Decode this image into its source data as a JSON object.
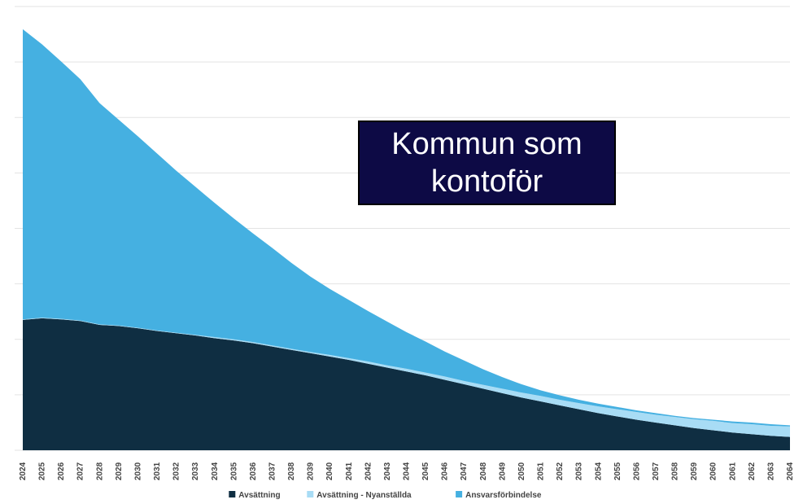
{
  "chart_data": {
    "type": "stacked_area",
    "annotation": "Kommun som kontoför",
    "x": [
      2024,
      2025,
      2026,
      2027,
      2028,
      2029,
      2030,
      2031,
      2032,
      2033,
      2034,
      2035,
      2036,
      2037,
      2038,
      2039,
      2040,
      2041,
      2042,
      2043,
      2044,
      2045,
      2046,
      2047,
      2048,
      2049,
      2050,
      2051,
      2052,
      2053,
      2054,
      2055,
      2056,
      2057,
      2058,
      2059,
      2060,
      2061,
      2062,
      2063,
      2064
    ],
    "xlim": [
      2024,
      2064
    ],
    "series": [
      {
        "name": "Avsättning",
        "color": "#0f2e42",
        "values": [
          2.35,
          2.38,
          2.36,
          2.33,
          2.26,
          2.24,
          2.2,
          2.15,
          2.11,
          2.07,
          2.02,
          1.98,
          1.93,
          1.87,
          1.81,
          1.75,
          1.69,
          1.63,
          1.56,
          1.49,
          1.42,
          1.35,
          1.27,
          1.19,
          1.11,
          1.03,
          0.95,
          0.88,
          0.81,
          0.74,
          0.67,
          0.61,
          0.55,
          0.5,
          0.45,
          0.4,
          0.36,
          0.32,
          0.29,
          0.26,
          0.24
        ]
      },
      {
        "name": "Avsättning - Nyanställda",
        "color": "#a8dcf5",
        "values": [
          0.01,
          0.01,
          0.01,
          0.01,
          0.01,
          0.01,
          0.01,
          0.01,
          0.01,
          0.01,
          0.02,
          0.02,
          0.02,
          0.02,
          0.02,
          0.02,
          0.03,
          0.03,
          0.04,
          0.04,
          0.05,
          0.05,
          0.06,
          0.06,
          0.07,
          0.08,
          0.09,
          0.1,
          0.1,
          0.11,
          0.12,
          0.13,
          0.14,
          0.14,
          0.15,
          0.16,
          0.17,
          0.17,
          0.18,
          0.18,
          0.19
        ]
      },
      {
        "name": "Ansvarsförbindelse",
        "color": "#45b0e1",
        "values": [
          5.23,
          4.93,
          4.64,
          4.35,
          3.99,
          3.71,
          3.45,
          3.19,
          2.92,
          2.67,
          2.42,
          2.18,
          1.96,
          1.76,
          1.55,
          1.36,
          1.19,
          1.05,
          0.91,
          0.79,
          0.66,
          0.56,
          0.45,
          0.37,
          0.28,
          0.21,
          0.15,
          0.1,
          0.08,
          0.06,
          0.05,
          0.04,
          0.03,
          0.03,
          0.02,
          0.02,
          0.02,
          0.03,
          0.03,
          0.03,
          0.02
        ]
      }
    ],
    "ylim": [
      0,
      8
    ],
    "yticks": [
      0,
      1,
      2,
      3,
      4,
      5,
      6,
      7,
      8
    ],
    "grid": true,
    "legend": "bottom"
  }
}
